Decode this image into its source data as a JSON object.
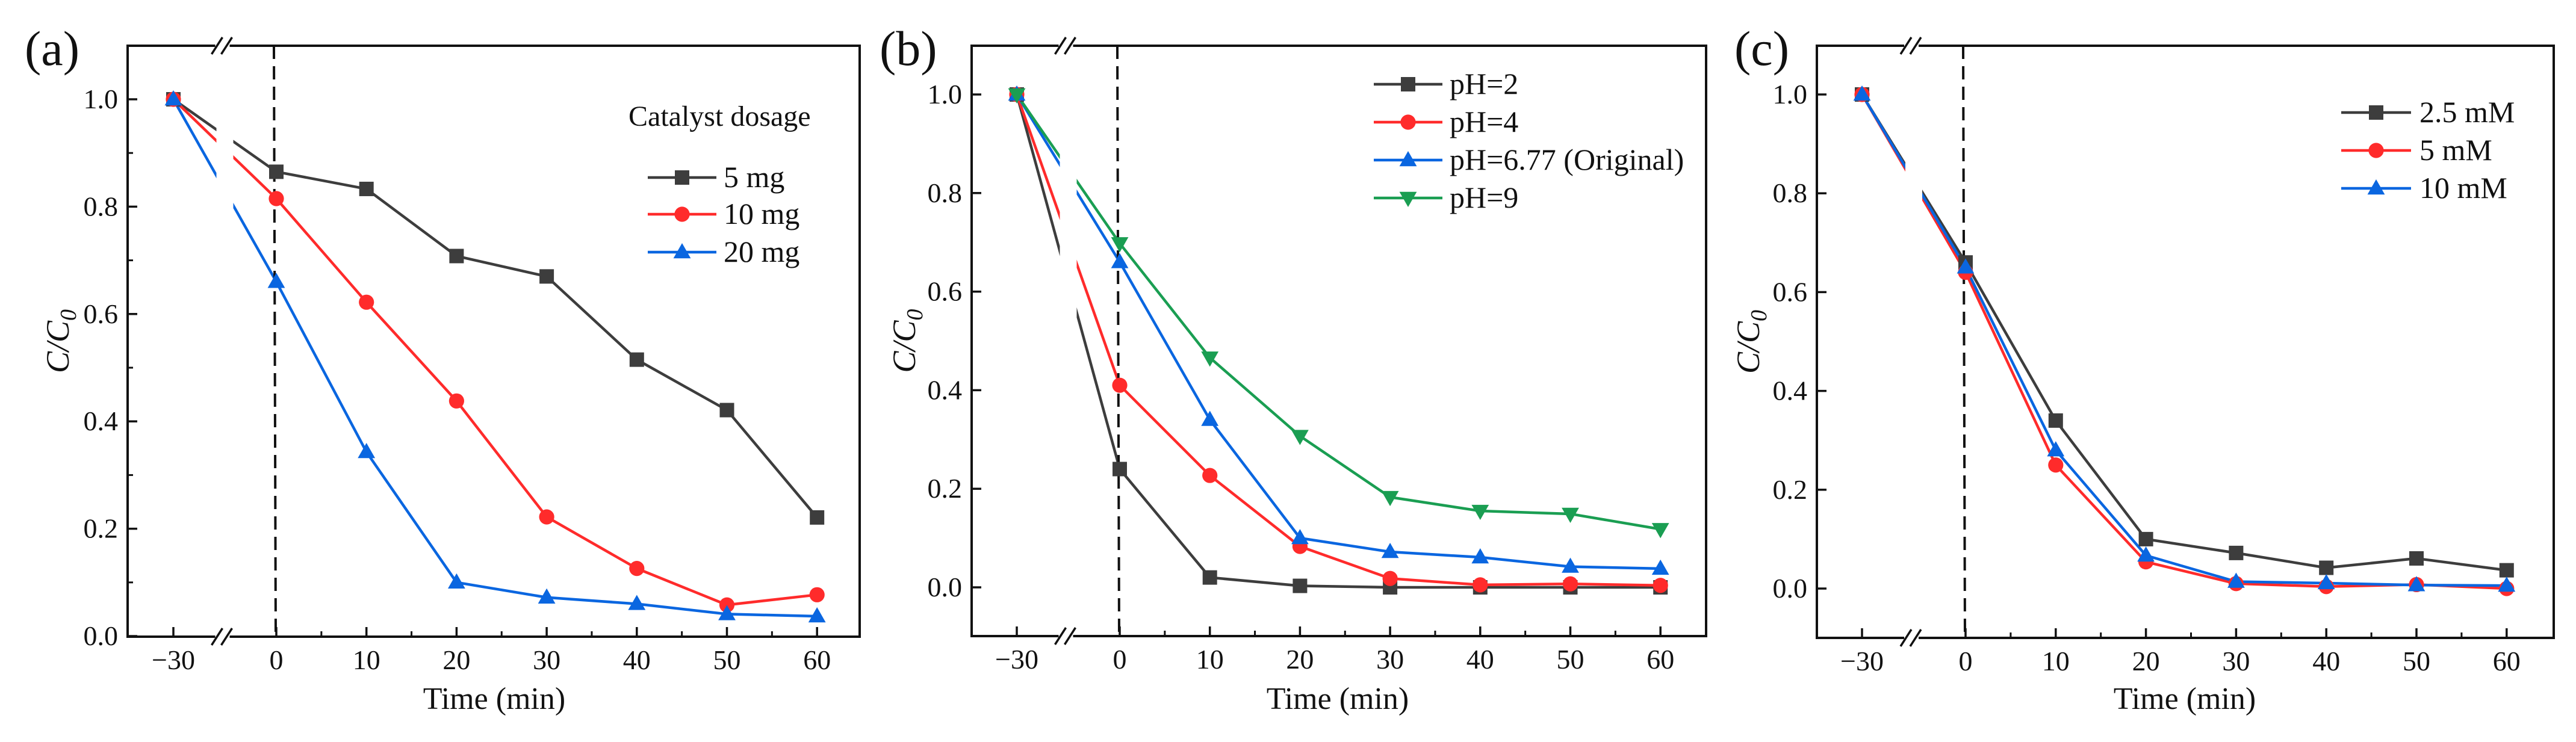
{
  "chart_data": [
    {
      "type": "line",
      "title": "(a)",
      "xlabel": "Time (min)",
      "ylabel": "C/C0",
      "x": [
        -30,
        0,
        10,
        20,
        30,
        40,
        50,
        60
      ],
      "xticks": [
        "−30",
        "0",
        "10",
        "20",
        "30",
        "40",
        "50",
        "60"
      ],
      "yticks": [
        "0.0",
        "0.2",
        "0.4",
        "0.6",
        "0.8",
        "1.0"
      ],
      "ylim": [
        0,
        1.1
      ],
      "axis_break": "between -30 and 0",
      "vertical_marker": 0,
      "grid": false,
      "legend_title": "Catalyst dosage",
      "legend_position": "top-right",
      "series": [
        {
          "name": "5 mg",
          "color": "#3d3d3d",
          "marker": "square",
          "values": [
            1.0,
            0.865,
            0.833,
            0.708,
            0.67,
            0.515,
            0.421,
            0.221
          ]
        },
        {
          "name": "10 mg",
          "color": "#ff2b2b",
          "marker": "circle",
          "values": [
            1.0,
            0.815,
            0.622,
            0.438,
            0.222,
            0.126,
            0.058,
            0.077
          ]
        },
        {
          "name": "20 mg",
          "color": "#0a66e0",
          "marker": "triangle-up",
          "values": [
            1.0,
            0.66,
            0.343,
            0.1,
            0.072,
            0.06,
            0.041,
            0.037
          ]
        }
      ]
    },
    {
      "type": "line",
      "title": "(b)",
      "xlabel": "Time (min)",
      "ylabel": "C/C0",
      "x": [
        -30,
        0,
        10,
        20,
        30,
        40,
        50,
        60
      ],
      "xticks": [
        "−30",
        "0",
        "10",
        "20",
        "30",
        "40",
        "50",
        "60"
      ],
      "yticks": [
        "0.0",
        "0.2",
        "0.4",
        "0.6",
        "0.8",
        "1.0"
      ],
      "ylim": [
        -0.1,
        1.1
      ],
      "axis_break": "between -30 and 0",
      "vertical_marker": 0,
      "grid": false,
      "legend_title": "",
      "legend_position": "top-right",
      "series": [
        {
          "name": "pH=2",
          "color": "#3d3d3d",
          "marker": "square",
          "values": [
            1.0,
            0.24,
            0.02,
            0.003,
            0.0,
            0.0,
            0.0,
            0.0
          ]
        },
        {
          "name": "pH=4",
          "color": "#ff2b2b",
          "marker": "circle",
          "values": [
            1.0,
            0.41,
            0.227,
            0.083,
            0.018,
            0.005,
            0.007,
            0.004
          ]
        },
        {
          "name": "pH=6.77 (Original)",
          "color": "#0a66e0",
          "marker": "triangle-up",
          "values": [
            1.0,
            0.66,
            0.34,
            0.1,
            0.072,
            0.061,
            0.042,
            0.038
          ]
        },
        {
          "name": "pH=9",
          "color": "#1a9e52",
          "marker": "triangle-down",
          "values": [
            1.0,
            0.698,
            0.466,
            0.307,
            0.183,
            0.155,
            0.149,
            0.118
          ]
        }
      ]
    },
    {
      "type": "line",
      "title": "(c)",
      "xlabel": "Time (min)",
      "ylabel": "C/C0",
      "x": [
        -30,
        0,
        10,
        20,
        30,
        40,
        50,
        60
      ],
      "xticks": [
        "−30",
        "0",
        "10",
        "20",
        "30",
        "40",
        "50",
        "60"
      ],
      "yticks": [
        "0.0",
        "0.2",
        "0.4",
        "0.6",
        "0.8",
        "1.0"
      ],
      "ylim": [
        -0.1,
        1.1
      ],
      "axis_break": "between -30 and 0",
      "vertical_marker": 0,
      "grid": false,
      "legend_title": "",
      "legend_position": "top-right",
      "series": [
        {
          "name": "2.5 mM",
          "color": "#3d3d3d",
          "marker": "square",
          "values": [
            1.0,
            0.66,
            0.34,
            0.1,
            0.072,
            0.042,
            0.061,
            0.037
          ]
        },
        {
          "name": "5 mM",
          "color": "#ff2b2b",
          "marker": "circle",
          "values": [
            1.0,
            0.64,
            0.25,
            0.054,
            0.01,
            0.004,
            0.008,
            0.0
          ]
        },
        {
          "name": "10 mM",
          "color": "#0a66e0",
          "marker": "triangle-up",
          "values": [
            1.0,
            0.65,
            0.28,
            0.067,
            0.014,
            0.011,
            0.007,
            0.006
          ]
        }
      ]
    }
  ]
}
